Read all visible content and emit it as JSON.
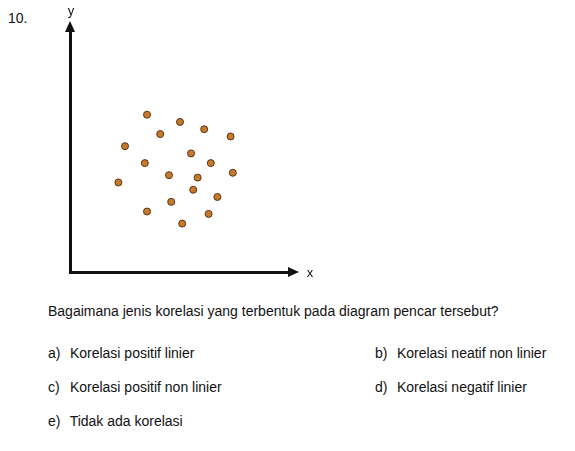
{
  "number": "10.",
  "chart_data": {
    "type": "scatter",
    "xlabel": "x",
    "ylabel": "y",
    "x": [
      35,
      50,
      61,
      73,
      41,
      25,
      55,
      34,
      64,
      74,
      45,
      22,
      56,
      67,
      46,
      35,
      63,
      51,
      58
    ],
    "values": [
      65,
      62,
      59,
      56,
      57,
      52,
      49,
      45,
      45,
      41,
      40,
      37,
      34,
      31,
      29,
      25,
      24,
      20,
      39
    ],
    "color": "#c87a2c",
    "marker": "circle",
    "xlim": [
      0,
      100
    ],
    "ylim": [
      0,
      100
    ],
    "grid": false,
    "tick_labels": false
  },
  "question": "Bagaimana jenis korelasi yang terbentuk pada diagram pencar tersebut?",
  "options": [
    {
      "label": "a)",
      "text": "Korelasi positif linier"
    },
    {
      "label": "b)",
      "text": "Korelasi neatif non linier"
    },
    {
      "label": "c)",
      "text": "Korelasi positif non linier"
    },
    {
      "label": "d)",
      "text": "Korelasi negatif linier"
    },
    {
      "label": "e)",
      "text": "Tidak ada korelasi"
    }
  ]
}
